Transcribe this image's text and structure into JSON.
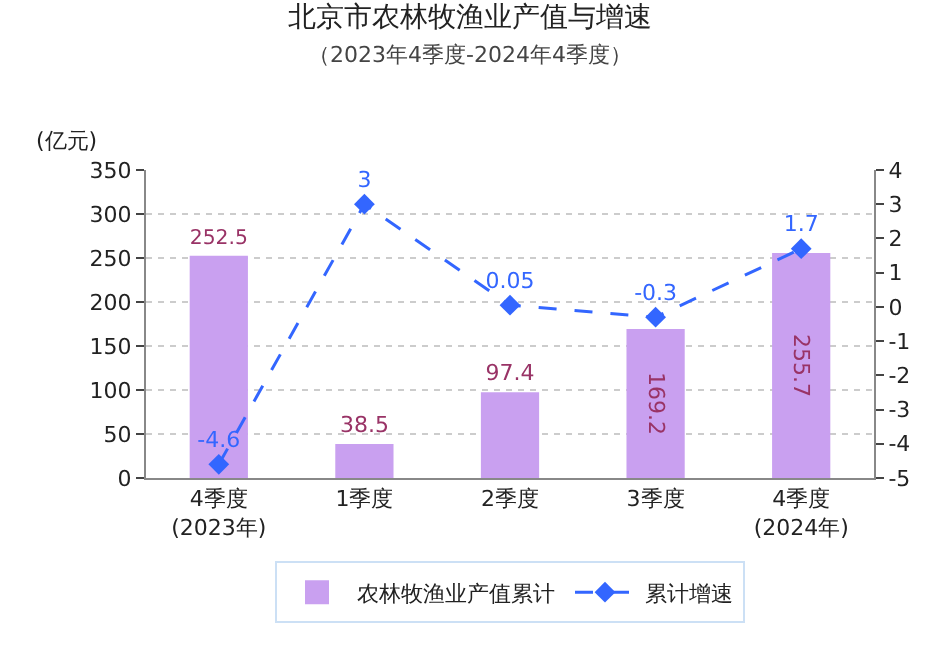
{
  "chart_data": {
    "type": "bar",
    "title": "北京市农林牧渔业产值与增速",
    "subtitle": "（2023年4季度-2024年4季度）",
    "ylabel": "(亿元)",
    "categories": [
      "4季度\n(2023年)",
      "1季度",
      "2季度",
      "3季度",
      "4季度\n(2024年)"
    ],
    "series": [
      {
        "name": "农林牧渔业产值累计",
        "color": "#c9a0f0",
        "values": [
          252.5,
          38.5,
          97.4,
          169.2,
          255.7
        ]
      },
      {
        "name": "累计增速",
        "type": "line",
        "axis": "y2",
        "color": "#3366ff",
        "marker": "diamond",
        "line_style": "dashed",
        "values": [
          -4.6,
          3,
          0.05,
          -0.3,
          1.7
        ]
      }
    ],
    "data_labels": true,
    "ylim": [
      0,
      350
    ],
    "yticks": [
      0,
      50,
      100,
      150,
      200,
      250,
      300,
      350
    ],
    "y2lim": [
      -5,
      4
    ],
    "y2ticks": [
      -5,
      -4,
      -3,
      -2,
      -1,
      0,
      1,
      2,
      3,
      4
    ],
    "grid": "y",
    "legend": "bottom"
  }
}
